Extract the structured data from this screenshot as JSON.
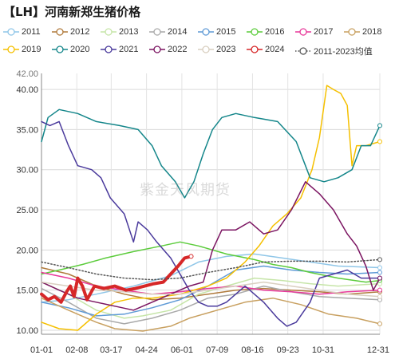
{
  "title": "【LH】河南新郑生猪价格",
  "watermark": "紫金天风期货",
  "chart_data": {
    "type": "line",
    "ylim": [
      9.5,
      42.0
    ],
    "yticks": [
      "10.00",
      "15.00",
      "20.00",
      "25.00",
      "30.00",
      "35.00",
      "40.00"
    ],
    "ytick_values": [
      10,
      15,
      20,
      25,
      30,
      35,
      40
    ],
    "y_top_label": "42.00",
    "xticks": [
      "01-01",
      "02-08",
      "03-17",
      "04-24",
      "06-01",
      "07-09",
      "08-16",
      "09-23",
      "10-31",
      "12-31"
    ],
    "xtick_days": [
      1,
      39,
      76,
      114,
      152,
      190,
      228,
      266,
      304,
      365
    ],
    "xlim": [
      1,
      365
    ],
    "grid": true,
    "legend_position": "top",
    "series": [
      {
        "name": "2011",
        "color": "#8fc6e8",
        "marker": "circle",
        "points": [
          [
            1,
            13.5
          ],
          [
            30,
            13.8
          ],
          [
            60,
            14.5
          ],
          [
            100,
            15.5
          ],
          [
            140,
            16.8
          ],
          [
            170,
            18.5
          ],
          [
            200,
            19.2
          ],
          [
            230,
            19.5
          ],
          [
            260,
            19.0
          ],
          [
            290,
            18.5
          ],
          [
            320,
            18.0
          ],
          [
            365,
            17.8
          ]
        ]
      },
      {
        "name": "2012",
        "color": "#b07a3c",
        "marker": "circle",
        "points": [
          [
            1,
            17.8
          ],
          [
            30,
            17.0
          ],
          [
            60,
            15.5
          ],
          [
            90,
            14.5
          ],
          [
            120,
            13.8
          ],
          [
            150,
            14.0
          ],
          [
            180,
            14.5
          ],
          [
            210,
            15.0
          ],
          [
            240,
            15.2
          ],
          [
            270,
            15.0
          ],
          [
            300,
            14.8
          ],
          [
            330,
            14.5
          ],
          [
            365,
            14.8
          ]
        ]
      },
      {
        "name": "2013",
        "color": "#c6e5a8",
        "marker": "circle",
        "points": [
          [
            1,
            16.0
          ],
          [
            30,
            14.5
          ],
          [
            60,
            12.5
          ],
          [
            90,
            11.5
          ],
          [
            110,
            11.8
          ],
          [
            140,
            12.5
          ],
          [
            170,
            14.5
          ],
          [
            200,
            15.5
          ],
          [
            230,
            16.5
          ],
          [
            260,
            16.2
          ],
          [
            290,
            15.8
          ],
          [
            320,
            15.5
          ],
          [
            365,
            15.8
          ]
        ]
      },
      {
        "name": "2014",
        "color": "#a9a9a9",
        "marker": "circle",
        "points": [
          [
            1,
            15.2
          ],
          [
            30,
            13.5
          ],
          [
            60,
            11.5
          ],
          [
            90,
            10.8
          ],
          [
            120,
            11.5
          ],
          [
            150,
            12.5
          ],
          [
            180,
            14.0
          ],
          [
            210,
            14.5
          ],
          [
            240,
            15.5
          ],
          [
            270,
            14.8
          ],
          [
            300,
            14.2
          ],
          [
            330,
            14.0
          ],
          [
            365,
            13.8
          ]
        ]
      },
      {
        "name": "2015",
        "color": "#5f9ad6",
        "marker": "circle",
        "points": [
          [
            1,
            13.5
          ],
          [
            30,
            12.8
          ],
          [
            60,
            11.8
          ],
          [
            90,
            12.0
          ],
          [
            120,
            12.8
          ],
          [
            150,
            13.8
          ],
          [
            180,
            15.5
          ],
          [
            210,
            17.5
          ],
          [
            240,
            18.0
          ],
          [
            270,
            17.5
          ],
          [
            300,
            17.2
          ],
          [
            330,
            17.0
          ],
          [
            365,
            17.2
          ]
        ]
      },
      {
        "name": "2016",
        "color": "#5ccc3c",
        "marker": "circle",
        "points": [
          [
            1,
            17.0
          ],
          [
            20,
            17.5
          ],
          [
            45,
            18.2
          ],
          [
            70,
            19.0
          ],
          [
            100,
            19.8
          ],
          [
            130,
            20.5
          ],
          [
            150,
            21.0
          ],
          [
            170,
            20.5
          ],
          [
            200,
            19.5
          ],
          [
            230,
            18.8
          ],
          [
            250,
            18.2
          ],
          [
            270,
            17.8
          ],
          [
            290,
            17.2
          ],
          [
            320,
            16.5
          ],
          [
            350,
            16.0
          ],
          [
            365,
            16.2
          ]
        ]
      },
      {
        "name": "2017",
        "color": "#e8399a",
        "marker": "circle",
        "points": [
          [
            1,
            17.2
          ],
          [
            30,
            16.5
          ],
          [
            60,
            15.5
          ],
          [
            90,
            15.0
          ],
          [
            120,
            14.5
          ],
          [
            150,
            14.8
          ],
          [
            180,
            15.2
          ],
          [
            210,
            15.5
          ],
          [
            240,
            15.0
          ],
          [
            270,
            14.8
          ],
          [
            300,
            14.5
          ],
          [
            330,
            14.8
          ],
          [
            365,
            15.0
          ]
        ]
      },
      {
        "name": "2018",
        "color": "#c8a060",
        "marker": "circle",
        "points": [
          [
            1,
            14.0
          ],
          [
            30,
            12.5
          ],
          [
            60,
            11.0
          ],
          [
            80,
            10.2
          ],
          [
            110,
            9.9
          ],
          [
            140,
            10.5
          ],
          [
            160,
            11.5
          ],
          [
            190,
            12.5
          ],
          [
            220,
            13.5
          ],
          [
            250,
            14.0
          ],
          [
            280,
            13.2
          ],
          [
            310,
            12.0
          ],
          [
            340,
            11.5
          ],
          [
            365,
            10.8
          ]
        ]
      },
      {
        "name": "2019",
        "color": "#f5c000",
        "marker": "circle",
        "points": [
          [
            1,
            11.0
          ],
          [
            20,
            10.2
          ],
          [
            40,
            10.0
          ],
          [
            60,
            12.0
          ],
          [
            80,
            13.5
          ],
          [
            100,
            14.0
          ],
          [
            120,
            14.0
          ],
          [
            150,
            14.5
          ],
          [
            180,
            15.5
          ],
          [
            200,
            16.5
          ],
          [
            220,
            18.5
          ],
          [
            235,
            20.5
          ],
          [
            250,
            23.0
          ],
          [
            265,
            24.5
          ],
          [
            280,
            26.5
          ],
          [
            292,
            30.0
          ],
          [
            300,
            34.0
          ],
          [
            308,
            40.5
          ],
          [
            315,
            40.0
          ],
          [
            323,
            39.5
          ],
          [
            330,
            38.0
          ],
          [
            335,
            30.5
          ],
          [
            340,
            33.0
          ],
          [
            350,
            33.0
          ],
          [
            365,
            33.5
          ]
        ]
      },
      {
        "name": "2020",
        "color": "#14868a",
        "marker": "circle",
        "points": [
          [
            1,
            33.5
          ],
          [
            8,
            36.5
          ],
          [
            20,
            37.5
          ],
          [
            40,
            37.0
          ],
          [
            60,
            36.0
          ],
          [
            85,
            35.5
          ],
          [
            105,
            35.0
          ],
          [
            120,
            33.0
          ],
          [
            130,
            30.5
          ],
          [
            145,
            28.5
          ],
          [
            155,
            26.5
          ],
          [
            165,
            28.5
          ],
          [
            175,
            32.0
          ],
          [
            185,
            35.0
          ],
          [
            195,
            36.5
          ],
          [
            210,
            37.0
          ],
          [
            230,
            36.5
          ],
          [
            255,
            36.0
          ],
          [
            275,
            33.5
          ],
          [
            290,
            29.0
          ],
          [
            305,
            28.5
          ],
          [
            320,
            29.0
          ],
          [
            335,
            30.0
          ],
          [
            345,
            33.0
          ],
          [
            355,
            33.0
          ],
          [
            365,
            35.5
          ]
        ]
      },
      {
        "name": "2021",
        "color": "#4a3a9c",
        "marker": "circle",
        "points": [
          [
            1,
            36.0
          ],
          [
            10,
            35.5
          ],
          [
            20,
            36.0
          ],
          [
            30,
            33.0
          ],
          [
            40,
            30.5
          ],
          [
            55,
            30.0
          ],
          [
            65,
            29.0
          ],
          [
            75,
            26.5
          ],
          [
            90,
            24.5
          ],
          [
            100,
            21.0
          ],
          [
            105,
            23.5
          ],
          [
            115,
            22.5
          ],
          [
            125,
            21.0
          ],
          [
            140,
            19.0
          ],
          [
            150,
            17.0
          ],
          [
            160,
            15.0
          ],
          [
            170,
            13.5
          ],
          [
            180,
            13.0
          ],
          [
            190,
            13.0
          ],
          [
            200,
            13.5
          ],
          [
            220,
            15.5
          ],
          [
            240,
            13.5
          ],
          [
            255,
            11.5
          ],
          [
            265,
            10.5
          ],
          [
            275,
            11.0
          ],
          [
            290,
            13.5
          ],
          [
            300,
            16.5
          ],
          [
            315,
            17.0
          ],
          [
            330,
            17.5
          ],
          [
            345,
            16.5
          ],
          [
            365,
            16.5
          ]
        ]
      },
      {
        "name": "2022",
        "color": "#7b1461",
        "marker": "circle",
        "points": [
          [
            1,
            16.0
          ],
          [
            20,
            15.0
          ],
          [
            40,
            14.0
          ],
          [
            60,
            13.5
          ],
          [
            80,
            13.0
          ],
          [
            100,
            12.5
          ],
          [
            120,
            13.5
          ],
          [
            140,
            14.5
          ],
          [
            160,
            15.5
          ],
          [
            175,
            16.0
          ],
          [
            185,
            20.0
          ],
          [
            195,
            22.5
          ],
          [
            210,
            22.5
          ],
          [
            225,
            23.5
          ],
          [
            240,
            22.0
          ],
          [
            255,
            22.5
          ],
          [
            270,
            25.0
          ],
          [
            285,
            28.5
          ],
          [
            300,
            27.0
          ],
          [
            315,
            25.0
          ],
          [
            330,
            22.0
          ],
          [
            340,
            20.5
          ],
          [
            350,
            18.0
          ],
          [
            358,
            15.0
          ],
          [
            365,
            16.5
          ]
        ]
      },
      {
        "name": "2023",
        "color": "#d9cfc0",
        "marker": "circle",
        "points": [
          [
            1,
            16.0
          ],
          [
            30,
            15.5
          ],
          [
            60,
            15.0
          ],
          [
            90,
            14.8
          ],
          [
            120,
            14.5
          ],
          [
            150,
            14.5
          ],
          [
            180,
            15.0
          ],
          [
            210,
            15.5
          ],
          [
            240,
            16.0
          ],
          [
            270,
            15.5
          ],
          [
            300,
            15.0
          ],
          [
            330,
            14.5
          ],
          [
            365,
            14.2
          ]
        ]
      },
      {
        "name": "2024",
        "color": "#d62728",
        "marker": "circle",
        "bold": true,
        "points": [
          [
            1,
            14.5
          ],
          [
            8,
            13.8
          ],
          [
            15,
            14.2
          ],
          [
            22,
            13.5
          ],
          [
            28,
            14.8
          ],
          [
            32,
            15.5
          ],
          [
            36,
            14.2
          ],
          [
            40,
            16.5
          ],
          [
            45,
            15.5
          ],
          [
            50,
            13.8
          ],
          [
            58,
            15.5
          ],
          [
            68,
            15.2
          ],
          [
            80,
            15.5
          ],
          [
            92,
            15.0
          ],
          [
            102,
            15.2
          ],
          [
            112,
            15.5
          ],
          [
            122,
            15.8
          ],
          [
            132,
            16.0
          ],
          [
            140,
            17.0
          ],
          [
            148,
            18.0
          ],
          [
            155,
            19.0
          ],
          [
            162,
            19.2
          ]
        ]
      },
      {
        "name": "2011-2023均值",
        "color": "#555555",
        "marker": "circle",
        "dotted": true,
        "points": [
          [
            1,
            18.5
          ],
          [
            30,
            17.8
          ],
          [
            60,
            17.0
          ],
          [
            90,
            16.5
          ],
          [
            120,
            16.3
          ],
          [
            150,
            16.5
          ],
          [
            180,
            17.2
          ],
          [
            210,
            17.8
          ],
          [
            240,
            18.5
          ],
          [
            270,
            18.6
          ],
          [
            300,
            18.6
          ],
          [
            330,
            18.5
          ],
          [
            365,
            18.8
          ]
        ]
      }
    ]
  }
}
